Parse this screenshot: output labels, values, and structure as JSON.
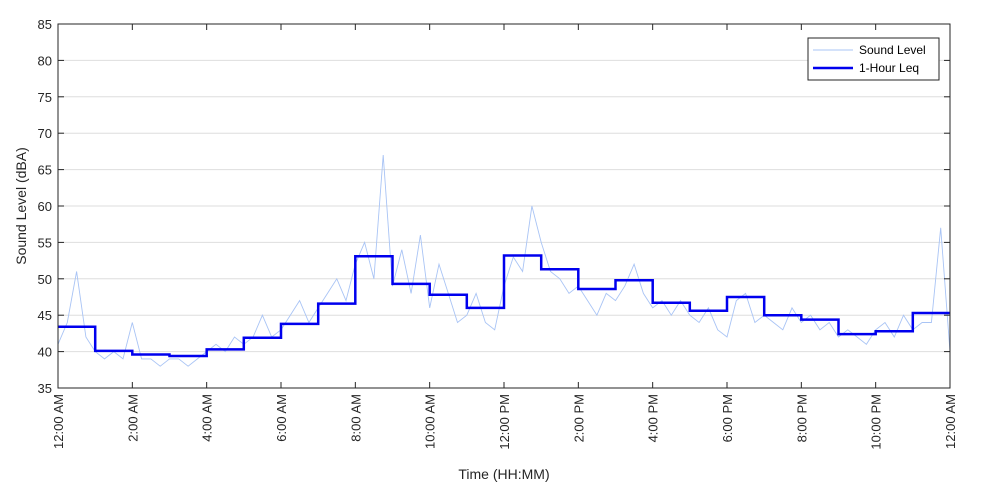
{
  "chart_data": {
    "type": "line",
    "title": "",
    "xlabel": "Time (HH:MM)",
    "ylabel": "Sound Level (dBA)",
    "xlim": [
      0,
      24
    ],
    "ylim": [
      35,
      85
    ],
    "grid": "y-major",
    "legend_position": "top-right",
    "y_ticks": [
      35,
      40,
      45,
      50,
      55,
      60,
      65,
      70,
      75,
      80,
      85
    ],
    "x_ticks": [
      {
        "hour": 0,
        "label": "12:00 AM"
      },
      {
        "hour": 2,
        "label": "2:00 AM"
      },
      {
        "hour": 4,
        "label": "4:00 AM"
      },
      {
        "hour": 6,
        "label": "6:00 AM"
      },
      {
        "hour": 8,
        "label": "8:00 AM"
      },
      {
        "hour": 10,
        "label": "10:00 AM"
      },
      {
        "hour": 12,
        "label": "12:00 PM"
      },
      {
        "hour": 14,
        "label": "2:00 PM"
      },
      {
        "hour": 16,
        "label": "4:00 PM"
      },
      {
        "hour": 18,
        "label": "6:00 PM"
      },
      {
        "hour": 20,
        "label": "8:00 PM"
      },
      {
        "hour": 22,
        "label": "10:00 PM"
      },
      {
        "hour": 24,
        "label": "12:00 AM"
      }
    ],
    "series": [
      {
        "name": "Sound Level",
        "color": "#a9c4f5",
        "x_hours": [
          0,
          0.25,
          0.5,
          0.75,
          1,
          1.25,
          1.5,
          1.75,
          2,
          2.25,
          2.5,
          2.75,
          3,
          3.25,
          3.5,
          3.75,
          4,
          4.25,
          4.5,
          4.75,
          5,
          5.25,
          5.5,
          5.75,
          6,
          6.25,
          6.5,
          6.75,
          7,
          7.25,
          7.5,
          7.75,
          8,
          8.25,
          8.5,
          8.75,
          9,
          9.25,
          9.5,
          9.75,
          10,
          10.25,
          10.5,
          10.75,
          11,
          11.25,
          11.5,
          11.75,
          12,
          12.25,
          12.5,
          12.75,
          13,
          13.25,
          13.5,
          13.75,
          14,
          14.25,
          14.5,
          14.75,
          15,
          15.25,
          15.5,
          15.75,
          16,
          16.25,
          16.5,
          16.75,
          17,
          17.25,
          17.5,
          17.75,
          18,
          18.25,
          18.5,
          18.75,
          19,
          19.25,
          19.5,
          19.75,
          20,
          20.25,
          20.5,
          20.75,
          21,
          21.25,
          21.5,
          21.75,
          22,
          22.25,
          22.5,
          22.75,
          23,
          23.25,
          23.5,
          23.75,
          24
        ],
        "values": [
          41,
          44,
          51,
          42,
          40,
          39,
          40,
          39,
          44,
          39,
          39,
          38,
          39,
          39,
          38,
          39,
          40,
          41,
          40,
          42,
          41,
          42,
          45,
          42,
          43,
          45,
          47,
          44,
          46,
          48,
          50,
          47,
          52,
          55,
          50,
          67,
          49,
          54,
          48,
          56,
          46,
          52,
          48,
          44,
          45,
          48,
          44,
          43,
          49,
          53,
          51,
          60,
          55,
          51,
          50,
          48,
          49,
          47,
          45,
          48,
          47,
          49,
          52,
          48,
          46,
          47,
          45,
          47,
          45,
          44,
          46,
          43,
          42,
          47,
          48,
          44,
          45,
          44,
          43,
          46,
          44,
          45,
          43,
          44,
          42,
          43,
          42,
          41,
          43,
          44,
          42,
          45,
          43,
          44,
          44,
          57,
          40
        ]
      },
      {
        "name": "1-Hour Leq",
        "color": "#0000ee",
        "steps": [
          43.4,
          40.1,
          39.6,
          39.4,
          40.3,
          41.9,
          43.8,
          46.6,
          53.1,
          49.3,
          47.8,
          46.0,
          53.2,
          51.3,
          48.6,
          49.8,
          46.7,
          45.6,
          47.5,
          45.0,
          44.4,
          42.4,
          42.8,
          45.3
        ]
      }
    ]
  }
}
